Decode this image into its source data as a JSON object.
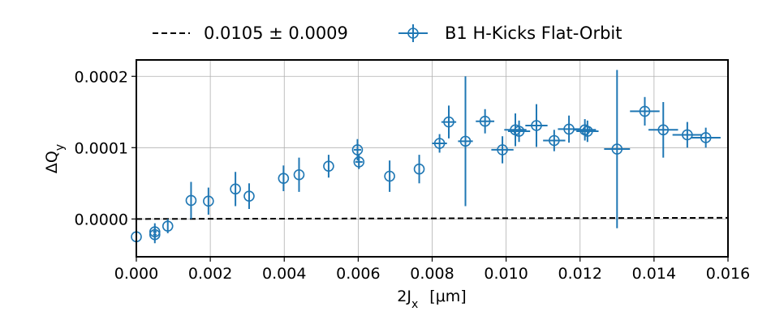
{
  "chart_data": {
    "type": "scatter",
    "xlabel_main": "2J",
    "xlabel_sub": "x",
    "xlabel_unit": "[μm]",
    "ylabel_main": "ΔQ",
    "ylabel_sub": "y",
    "xlim": [
      0.0,
      0.016
    ],
    "ylim": [
      -5.3e-05,
      0.000223
    ],
    "x_ticks": [
      0.0,
      0.002,
      0.004,
      0.006,
      0.008,
      0.01,
      0.012,
      0.014,
      0.016
    ],
    "x_tick_labels": [
      "0.000",
      "0.002",
      "0.004",
      "0.006",
      "0.008",
      "0.010",
      "0.012",
      "0.014",
      "0.016"
    ],
    "y_ticks": [
      0.0,
      0.0001,
      0.0002
    ],
    "y_tick_labels": [
      "0.0000",
      "0.0001",
      "0.0002"
    ],
    "grid": true,
    "legend_position": "top",
    "colors": {
      "data": "#1f77b4",
      "fit": "#000000"
    },
    "fit": {
      "label": "0.0105 ± 0.0009",
      "slope": 0.0105,
      "intercept": 0.0,
      "style": "dashed"
    },
    "series": [
      {
        "name": "B1 H-Kicks Flat-Orbit",
        "marker": "open-circle",
        "points": [
          {
            "x": 0.0,
            "y": -2.5e-05,
            "xerr": 0.0,
            "yerr": 0.0
          },
          {
            "x": 0.0005,
            "y": -1.8e-05,
            "xerr": 5e-05,
            "yerr": 1.2e-05
          },
          {
            "x": 0.0005,
            "y": -2.2e-05,
            "xerr": 5e-05,
            "yerr": 1.2e-05
          },
          {
            "x": 0.00085,
            "y": -1e-05,
            "xerr": 0.0,
            "yerr": 1e-05
          },
          {
            "x": 0.00148,
            "y": 2.6e-05,
            "xerr": 0.0,
            "yerr": 2.6e-05
          },
          {
            "x": 0.00195,
            "y": 2.5e-05,
            "xerr": 0.0,
            "yerr": 1.9e-05
          },
          {
            "x": 0.00268,
            "y": 4.2e-05,
            "xerr": 0.0,
            "yerr": 2.4e-05
          },
          {
            "x": 0.00305,
            "y": 3.2e-05,
            "xerr": 0.0,
            "yerr": 1.8e-05
          },
          {
            "x": 0.00398,
            "y": 5.7e-05,
            "xerr": 0.0,
            "yerr": 1.8e-05
          },
          {
            "x": 0.0044,
            "y": 6.2e-05,
            "xerr": 0.0,
            "yerr": 2.4e-05
          },
          {
            "x": 0.0052,
            "y": 7.4e-05,
            "xerr": 0.0,
            "yerr": 1.6e-05
          },
          {
            "x": 0.00598,
            "y": 9.7e-05,
            "xerr": 0.0001,
            "yerr": 1.5e-05
          },
          {
            "x": 0.00602,
            "y": 8e-05,
            "xerr": 0.0001,
            "yerr": 1e-05
          },
          {
            "x": 0.00685,
            "y": 6e-05,
            "xerr": 0.0,
            "yerr": 2.2e-05
          },
          {
            "x": 0.00765,
            "y": 7e-05,
            "xerr": 0.0,
            "yerr": 2e-05
          },
          {
            "x": 0.0082,
            "y": 0.000106,
            "xerr": 0.0002,
            "yerr": 1.3e-05
          },
          {
            "x": 0.00845,
            "y": 0.000136,
            "xerr": 0.0002,
            "yerr": 2.3e-05
          },
          {
            "x": 0.0089,
            "y": 0.000109,
            "xerr": 0.0002,
            "yerr": 9.1e-05
          },
          {
            "x": 0.00943,
            "y": 0.000137,
            "xerr": 0.00025,
            "yerr": 1.7e-05
          },
          {
            "x": 0.0099,
            "y": 9.7e-05,
            "xerr": 0.0003,
            "yerr": 1.9e-05
          },
          {
            "x": 0.01025,
            "y": 0.000125,
            "xerr": 0.0003,
            "yerr": 2.3e-05
          },
          {
            "x": 0.01035,
            "y": 0.000123,
            "xerr": 0.0003,
            "yerr": 1.5e-05
          },
          {
            "x": 0.01082,
            "y": 0.000131,
            "xerr": 0.0003,
            "yerr": 3e-05
          },
          {
            "x": 0.0113,
            "y": 0.00011,
            "xerr": 0.0003,
            "yerr": 1.5e-05
          },
          {
            "x": 0.0117,
            "y": 0.000126,
            "xerr": 0.0003,
            "yerr": 1.9e-05
          },
          {
            "x": 0.01213,
            "y": 0.000125,
            "xerr": 0.0003,
            "yerr": 1.5e-05
          },
          {
            "x": 0.0122,
            "y": 0.000123,
            "xerr": 0.0003,
            "yerr": 1.5e-05
          },
          {
            "x": 0.013,
            "y": 9.8e-05,
            "xerr": 0.00035,
            "yerr": 0.000111
          },
          {
            "x": 0.01375,
            "y": 0.000151,
            "xerr": 0.0004,
            "yerr": 2e-05
          },
          {
            "x": 0.01425,
            "y": 0.000125,
            "xerr": 0.0004,
            "yerr": 3.9e-05
          },
          {
            "x": 0.0149,
            "y": 0.000118,
            "xerr": 0.0004,
            "yerr": 1.8e-05
          },
          {
            "x": 0.0154,
            "y": 0.000114,
            "xerr": 0.0004,
            "yerr": 1.4e-05
          }
        ]
      }
    ]
  }
}
